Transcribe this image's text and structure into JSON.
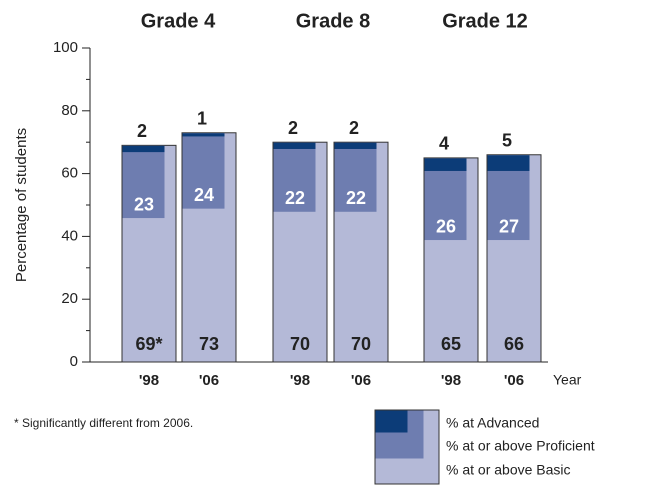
{
  "chart_data": {
    "type": "overlap_bar",
    "groups": [
      "Grade 4",
      "Grade 8",
      "Grade 12"
    ],
    "categories": [
      "'98",
      "'06",
      "'98",
      "'06",
      "'98",
      "'06"
    ],
    "x_label": "Year",
    "y_label": "Percentage of students",
    "ylim": [
      0,
      100
    ],
    "yticks": [
      0,
      20,
      40,
      60,
      80,
      100
    ],
    "yminor": [
      10,
      30,
      50,
      70,
      90
    ],
    "series": [
      {
        "name": "% at or above Basic",
        "color": "#b4b9d7",
        "values": [
          69,
          73,
          70,
          70,
          65,
          66
        ],
        "value_labels": [
          "69*",
          "73",
          "70",
          "70",
          "65",
          "66"
        ]
      },
      {
        "name": "% at or above Proficient",
        "color": "#6e7db0",
        "values": [
          23,
          24,
          22,
          22,
          26,
          27
        ]
      },
      {
        "name": "% at Advanced",
        "color": "#0c3c78",
        "values": [
          2,
          1,
          2,
          2,
          4,
          5
        ]
      }
    ],
    "footnote": "* Significantly different from 2006."
  }
}
